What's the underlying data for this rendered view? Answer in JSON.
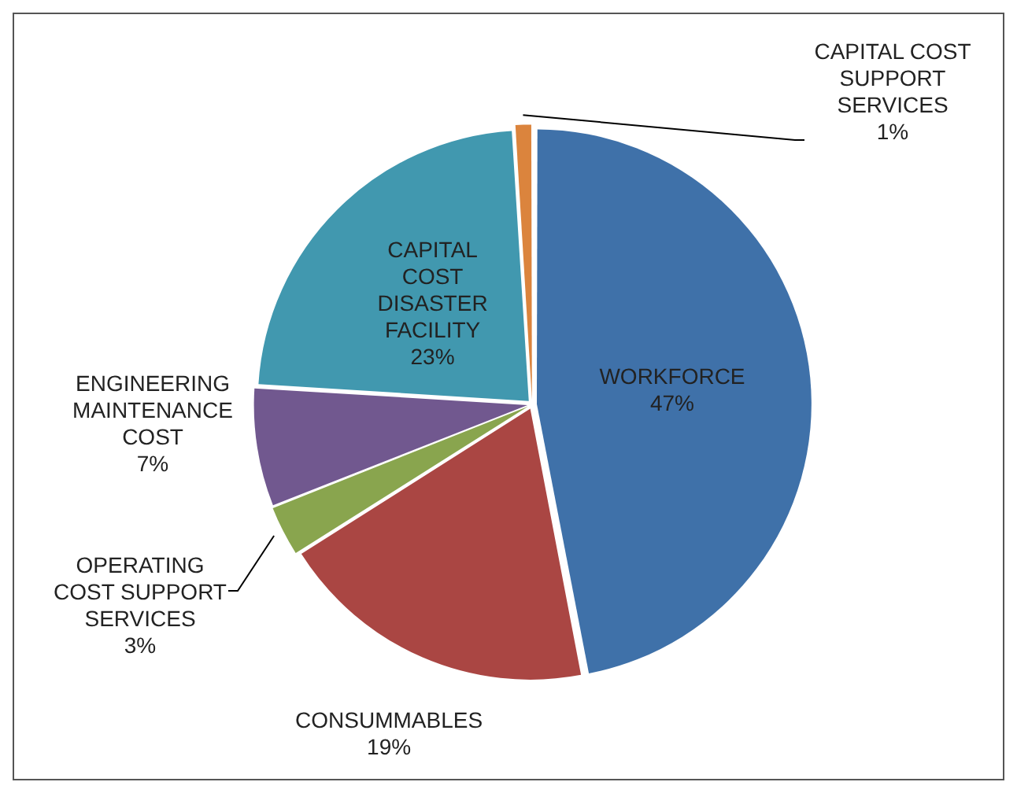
{
  "chart_data": {
    "type": "pie",
    "categories": [
      "WORKFORCE",
      "CONSUMMABLES",
      "OPERATING COST SUPPORT SERVICES",
      "ENGINEERING MAINTENANCE COST",
      "CAPITAL COST DISASTER FACILITY",
      "CAPITAL COST SUPPORT SERVICES"
    ],
    "values": [
      47,
      19,
      3,
      7,
      23,
      1
    ],
    "value_labels": [
      "47%",
      "19%",
      "3%",
      "7%",
      "23%",
      "1%"
    ],
    "colors": [
      "#3f71a9",
      "#aa4643",
      "#89a54e",
      "#71588f",
      "#4198af",
      "#db843d"
    ],
    "legend": false
  }
}
